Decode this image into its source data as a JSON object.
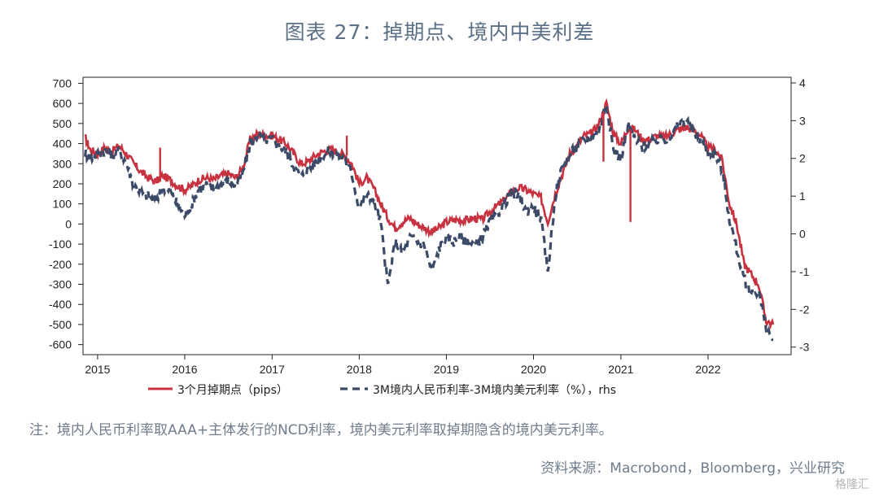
{
  "title": "图表 27：掉期点、境内中美利差",
  "note": "注：境内人民币利率取AAA+主体发行的NCD利率，境内美元利率取掉期隐含的境内美元利率。",
  "source": "资料来源：Macrobond，Bloomberg，兴业研究",
  "watermark": "格隆汇",
  "chart_data": {
    "type": "line",
    "x_ticks": [
      "2015",
      "2016",
      "2017",
      "2018",
      "2019",
      "2020",
      "2021",
      "2022"
    ],
    "y_left": {
      "ticks": [
        700,
        600,
        500,
        400,
        300,
        200,
        100,
        0,
        -100,
        -200,
        -300,
        -400,
        -500,
        -600
      ],
      "range": [
        -650,
        730
      ]
    },
    "y_right": {
      "ticks": [
        4,
        3,
        2,
        1,
        0,
        -1,
        -2,
        -3
      ],
      "range": [
        -3.2,
        4.15
      ]
    },
    "colors": {
      "swap": "#c8313f",
      "spread": "#3b4a66"
    },
    "series": [
      {
        "name": "3个月掉期点（pips）",
        "axis": "left",
        "style": "solid",
        "points": [
          [
            "2014-11-10",
            430
          ],
          [
            "2014-12-01",
            370
          ],
          [
            "2015-01-01",
            350
          ],
          [
            "2015-02-01",
            380
          ],
          [
            "2015-03-01",
            360
          ],
          [
            "2015-04-01",
            390
          ],
          [
            "2015-05-01",
            350
          ],
          [
            "2015-06-01",
            300
          ],
          [
            "2015-07-01",
            260
          ],
          [
            "2015-08-01",
            230
          ],
          [
            "2015-09-01",
            210
          ],
          [
            "2015-10-01",
            240
          ],
          [
            "2015-11-01",
            220
          ],
          [
            "2015-12-01",
            190
          ],
          [
            "2016-01-01",
            170
          ],
          [
            "2016-02-01",
            190
          ],
          [
            "2016-03-01",
            220
          ],
          [
            "2016-04-01",
            230
          ],
          [
            "2016-05-01",
            220
          ],
          [
            "2016-06-01",
            240
          ],
          [
            "2016-07-01",
            250
          ],
          [
            "2016-08-01",
            230
          ],
          [
            "2016-09-01",
            280
          ],
          [
            "2016-10-01",
            420
          ],
          [
            "2016-11-01",
            450
          ],
          [
            "2016-12-01",
            440
          ],
          [
            "2017-01-01",
            440
          ],
          [
            "2017-02-01",
            420
          ],
          [
            "2017-03-01",
            400
          ],
          [
            "2017-04-01",
            350
          ],
          [
            "2017-05-01",
            300
          ],
          [
            "2017-06-01",
            310
          ],
          [
            "2017-07-01",
            340
          ],
          [
            "2017-08-01",
            360
          ],
          [
            "2017-09-01",
            370
          ],
          [
            "2017-10-01",
            360
          ],
          [
            "2017-11-01",
            340
          ],
          [
            "2017-12-01",
            300
          ],
          [
            "2018-01-01",
            200
          ],
          [
            "2018-02-01",
            230
          ],
          [
            "2018-03-01",
            180
          ],
          [
            "2018-04-01",
            100
          ],
          [
            "2018-05-01",
            30
          ],
          [
            "2018-06-01",
            -20
          ],
          [
            "2018-07-01",
            10
          ],
          [
            "2018-08-01",
            30
          ],
          [
            "2018-09-01",
            0
          ],
          [
            "2018-10-01",
            -20
          ],
          [
            "2018-11-01",
            -40
          ],
          [
            "2018-12-01",
            -20
          ],
          [
            "2019-01-01",
            10
          ],
          [
            "2019-02-01",
            20
          ],
          [
            "2019-03-01",
            20
          ],
          [
            "2019-04-01",
            20
          ],
          [
            "2019-05-01",
            30
          ],
          [
            "2019-06-01",
            20
          ],
          [
            "2019-07-01",
            60
          ],
          [
            "2019-08-01",
            90
          ],
          [
            "2019-09-01",
            120
          ],
          [
            "2019-10-01",
            160
          ],
          [
            "2019-11-01",
            180
          ],
          [
            "2019-12-01",
            170
          ],
          [
            "2020-01-01",
            150
          ],
          [
            "2020-02-01",
            130
          ],
          [
            "2020-03-01",
            10
          ],
          [
            "2020-04-01",
            150
          ],
          [
            "2020-05-01",
            250
          ],
          [
            "2020-06-01",
            350
          ],
          [
            "2020-07-01",
            390
          ],
          [
            "2020-08-01",
            440
          ],
          [
            "2020-09-01",
            450
          ],
          [
            "2020-10-01",
            500
          ],
          [
            "2020-11-01",
            600
          ],
          [
            "2020-12-01",
            450
          ],
          [
            "2021-01-01",
            400
          ],
          [
            "2021-02-01",
            480
          ],
          [
            "2021-03-01",
            470
          ],
          [
            "2021-04-01",
            420
          ],
          [
            "2021-05-01",
            420
          ],
          [
            "2021-06-01",
            440
          ],
          [
            "2021-07-01",
            430
          ],
          [
            "2021-08-01",
            450
          ],
          [
            "2021-09-01",
            470
          ],
          [
            "2021-10-01",
            480
          ],
          [
            "2021-11-01",
            470
          ],
          [
            "2021-12-01",
            440
          ],
          [
            "2022-01-01",
            380
          ],
          [
            "2022-02-01",
            370
          ],
          [
            "2022-03-01",
            320
          ],
          [
            "2022-04-01",
            100
          ],
          [
            "2022-05-01",
            0
          ],
          [
            "2022-06-01",
            -200
          ],
          [
            "2022-07-01",
            -250
          ],
          [
            "2022-08-01",
            -300
          ],
          [
            "2022-09-01",
            -480
          ],
          [
            "2022-10-01",
            -500
          ]
        ]
      },
      {
        "name": "3M境内人民币利率-3M境内美元利率（%），rhs",
        "axis": "right",
        "style": "dashed",
        "points": [
          [
            "2014-11-10",
            2.15
          ],
          [
            "2014-12-01",
            2.0
          ],
          [
            "2015-01-01",
            2.1
          ],
          [
            "2015-02-01",
            2.2
          ],
          [
            "2015-03-01",
            2.1
          ],
          [
            "2015-04-01",
            2.2
          ],
          [
            "2015-05-01",
            1.9
          ],
          [
            "2015-06-01",
            1.3
          ],
          [
            "2015-07-01",
            1.1
          ],
          [
            "2015-08-01",
            1.0
          ],
          [
            "2015-09-01",
            0.9
          ],
          [
            "2015-10-01",
            1.2
          ],
          [
            "2015-11-01",
            1.1
          ],
          [
            "2015-12-01",
            0.8
          ],
          [
            "2016-01-01",
            0.5
          ],
          [
            "2016-02-01",
            0.8
          ],
          [
            "2016-03-01",
            1.2
          ],
          [
            "2016-04-01",
            1.3
          ],
          [
            "2016-05-01",
            1.2
          ],
          [
            "2016-06-01",
            1.3
          ],
          [
            "2016-07-01",
            1.4
          ],
          [
            "2016-08-01",
            1.3
          ],
          [
            "2016-09-01",
            1.6
          ],
          [
            "2016-10-01",
            2.4
          ],
          [
            "2016-11-01",
            2.6
          ],
          [
            "2016-12-01",
            2.5
          ],
          [
            "2017-01-01",
            2.5
          ],
          [
            "2017-02-01",
            2.3
          ],
          [
            "2017-03-01",
            2.2
          ],
          [
            "2017-04-01",
            1.8
          ],
          [
            "2017-05-01",
            1.5
          ],
          [
            "2017-06-01",
            1.7
          ],
          [
            "2017-07-01",
            1.9
          ],
          [
            "2017-08-01",
            2.1
          ],
          [
            "2017-09-01",
            2.2
          ],
          [
            "2017-10-01",
            2.1
          ],
          [
            "2017-11-01",
            2.0
          ],
          [
            "2017-12-01",
            1.6
          ],
          [
            "2018-01-01",
            0.7
          ],
          [
            "2018-02-01",
            1.0
          ],
          [
            "2018-03-01",
            0.9
          ],
          [
            "2018-04-01",
            0.3
          ],
          [
            "2018-05-01",
            -1.4
          ],
          [
            "2018-06-01",
            -0.2
          ],
          [
            "2018-07-01",
            -0.5
          ],
          [
            "2018-08-01",
            -0.1
          ],
          [
            "2018-09-01",
            -0.2
          ],
          [
            "2018-10-01",
            -0.3
          ],
          [
            "2018-11-01",
            -1.0
          ],
          [
            "2018-12-01",
            -0.4
          ],
          [
            "2019-01-01",
            -0.1
          ],
          [
            "2019-02-01",
            -0.2
          ],
          [
            "2019-03-01",
            -0.1
          ],
          [
            "2019-04-01",
            -0.2
          ],
          [
            "2019-05-01",
            -0.3
          ],
          [
            "2019-06-01",
            -0.1
          ],
          [
            "2019-07-01",
            0.3
          ],
          [
            "2019-08-01",
            0.5
          ],
          [
            "2019-09-01",
            0.8
          ],
          [
            "2019-10-01",
            1.1
          ],
          [
            "2019-11-01",
            1.0
          ],
          [
            "2019-12-01",
            0.6
          ],
          [
            "2020-01-01",
            0.7
          ],
          [
            "2020-02-01",
            0.4
          ],
          [
            "2020-03-01",
            -1.0
          ],
          [
            "2020-04-01",
            1.0
          ],
          [
            "2020-05-01",
            1.8
          ],
          [
            "2020-06-01",
            2.1
          ],
          [
            "2020-07-01",
            2.3
          ],
          [
            "2020-08-01",
            2.5
          ],
          [
            "2020-09-01",
            2.6
          ],
          [
            "2020-10-01",
            2.7
          ],
          [
            "2020-11-01",
            3.5
          ],
          [
            "2020-12-01",
            2.2
          ],
          [
            "2021-01-01",
            2.0
          ],
          [
            "2021-02-01",
            2.9
          ],
          [
            "2021-03-01",
            2.5
          ],
          [
            "2021-04-01",
            2.3
          ],
          [
            "2021-05-01",
            2.4
          ],
          [
            "2021-06-01",
            2.5
          ],
          [
            "2021-07-01",
            2.5
          ],
          [
            "2021-08-01",
            2.6
          ],
          [
            "2021-09-01",
            2.9
          ],
          [
            "2021-10-01",
            3.0
          ],
          [
            "2021-11-01",
            2.7
          ],
          [
            "2021-12-01",
            2.5
          ],
          [
            "2022-01-01",
            2.2
          ],
          [
            "2022-02-01",
            2.1
          ],
          [
            "2022-03-01",
            1.7
          ],
          [
            "2022-04-01",
            0.4
          ],
          [
            "2022-05-01",
            -0.4
          ],
          [
            "2022-06-01",
            -1.2
          ],
          [
            "2022-07-01",
            -1.6
          ],
          [
            "2022-08-01",
            -1.5
          ],
          [
            "2022-09-01",
            -2.5
          ],
          [
            "2022-10-01",
            -2.8
          ]
        ]
      }
    ],
    "spikes": [
      {
        "x": "2015-09-20",
        "from": 210,
        "to": 380
      },
      {
        "x": "2020-10-20",
        "from": 560,
        "to": 310
      },
      {
        "x": "2021-02-10",
        "from": 470,
        "to": 10
      },
      {
        "x": "2017-11-10",
        "from": 340,
        "to": 440
      }
    ],
    "legend_position": "bottom"
  }
}
